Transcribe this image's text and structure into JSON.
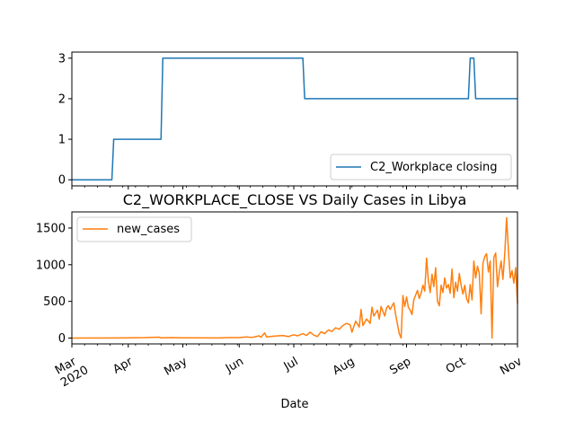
{
  "chart_data": [
    {
      "type": "line",
      "title": "",
      "xlabel": "",
      "ylabel": "",
      "ylim": [
        -0.15,
        3.15
      ],
      "yticks": [
        0,
        1,
        2,
        3
      ],
      "legend_placement": "lower-right",
      "grid": false,
      "series": [
        {
          "name": "C2_Workplace closing",
          "color": "#1f77b4",
          "points": [
            [
              "2020-03-01",
              0
            ],
            [
              "2020-03-23",
              0
            ],
            [
              "2020-03-24",
              1
            ],
            [
              "2020-04-19",
              1
            ],
            [
              "2020-04-20",
              3
            ],
            [
              "2020-07-06",
              3
            ],
            [
              "2020-07-07",
              2
            ],
            [
              "2020-10-05",
              2
            ],
            [
              "2020-10-06",
              3
            ],
            [
              "2020-10-08",
              3
            ],
            [
              "2020-10-09",
              2
            ],
            [
              "2020-11-01",
              2
            ]
          ]
        }
      ]
    },
    {
      "type": "line",
      "title": "C2_WORKPLACE_CLOSE VS Daily Cases in Libya",
      "xlabel": "Date",
      "ylabel": "",
      "ylim": [
        -80,
        1720
      ],
      "yticks": [
        0,
        500,
        1000,
        1500
      ],
      "legend_placement": "top-left",
      "grid": false,
      "series": [
        {
          "name": "new_cases",
          "color": "#ff7f0e",
          "points": [
            [
              "2020-03-01",
              0
            ],
            [
              "2020-03-24",
              1
            ],
            [
              "2020-04-01",
              3
            ],
            [
              "2020-04-10",
              5
            ],
            [
              "2020-04-18",
              12
            ],
            [
              "2020-04-19",
              2
            ],
            [
              "2020-04-25",
              6
            ],
            [
              "2020-05-01",
              3
            ],
            [
              "2020-05-10",
              2
            ],
            [
              "2020-05-20",
              1
            ],
            [
              "2020-05-26",
              5
            ],
            [
              "2020-06-01",
              6
            ],
            [
              "2020-06-05",
              15
            ],
            [
              "2020-06-08",
              8
            ],
            [
              "2020-06-12",
              30
            ],
            [
              "2020-06-13",
              10
            ],
            [
              "2020-06-15",
              70
            ],
            [
              "2020-06-16",
              15
            ],
            [
              "2020-06-20",
              25
            ],
            [
              "2020-06-25",
              35
            ],
            [
              "2020-06-28",
              20
            ],
            [
              "2020-07-01",
              45
            ],
            [
              "2020-07-03",
              30
            ],
            [
              "2020-07-06",
              60
            ],
            [
              "2020-07-08",
              35
            ],
            [
              "2020-07-10",
              80
            ],
            [
              "2020-07-12",
              40
            ],
            [
              "2020-07-14",
              20
            ],
            [
              "2020-07-16",
              85
            ],
            [
              "2020-07-18",
              60
            ],
            [
              "2020-07-20",
              110
            ],
            [
              "2020-07-22",
              90
            ],
            [
              "2020-07-24",
              140
            ],
            [
              "2020-07-26",
              120
            ],
            [
              "2020-07-28",
              170
            ],
            [
              "2020-07-30",
              200
            ],
            [
              "2020-08-01",
              180
            ],
            [
              "2020-08-02",
              80
            ],
            [
              "2020-08-04",
              230
            ],
            [
              "2020-08-06",
              150
            ],
            [
              "2020-08-07",
              390
            ],
            [
              "2020-08-08",
              170
            ],
            [
              "2020-08-10",
              260
            ],
            [
              "2020-08-12",
              200
            ],
            [
              "2020-08-13",
              420
            ],
            [
              "2020-08-14",
              300
            ],
            [
              "2020-08-16",
              380
            ],
            [
              "2020-08-17",
              260
            ],
            [
              "2020-08-18",
              430
            ],
            [
              "2020-08-20",
              300
            ],
            [
              "2020-08-21",
              410
            ],
            [
              "2020-08-22",
              440
            ],
            [
              "2020-08-23",
              390
            ],
            [
              "2020-08-25",
              480
            ],
            [
              "2020-08-26",
              320
            ],
            [
              "2020-08-27",
              190
            ],
            [
              "2020-08-28",
              60
            ],
            [
              "2020-08-29",
              0
            ],
            [
              "2020-08-30",
              580
            ],
            [
              "2020-08-31",
              430
            ],
            [
              "2020-09-01",
              560
            ],
            [
              "2020-09-02",
              420
            ],
            [
              "2020-09-03",
              380
            ],
            [
              "2020-09-04",
              320
            ],
            [
              "2020-09-05",
              520
            ],
            [
              "2020-09-07",
              650
            ],
            [
              "2020-09-08",
              540
            ],
            [
              "2020-09-09",
              610
            ],
            [
              "2020-09-10",
              720
            ],
            [
              "2020-09-11",
              640
            ],
            [
              "2020-09-12",
              1090
            ],
            [
              "2020-09-13",
              780
            ],
            [
              "2020-09-14",
              620
            ],
            [
              "2020-09-15",
              870
            ],
            [
              "2020-09-16",
              700
            ],
            [
              "2020-09-17",
              960
            ],
            [
              "2020-09-18",
              500
            ],
            [
              "2020-09-19",
              440
            ],
            [
              "2020-09-20",
              720
            ],
            [
              "2020-09-21",
              620
            ],
            [
              "2020-09-22",
              820
            ],
            [
              "2020-09-23",
              680
            ],
            [
              "2020-09-24",
              730
            ],
            [
              "2020-09-25",
              610
            ],
            [
              "2020-09-26",
              940
            ],
            [
              "2020-09-27",
              550
            ],
            [
              "2020-09-28",
              760
            ],
            [
              "2020-09-29",
              640
            ],
            [
              "2020-09-30",
              880
            ],
            [
              "2020-10-01",
              720
            ],
            [
              "2020-10-02",
              600
            ],
            [
              "2020-10-03",
              720
            ],
            [
              "2020-10-04",
              540
            ],
            [
              "2020-10-05",
              480
            ],
            [
              "2020-10-06",
              730
            ],
            [
              "2020-10-07",
              520
            ],
            [
              "2020-10-08",
              1050
            ],
            [
              "2020-10-09",
              820
            ],
            [
              "2020-10-10",
              980
            ],
            [
              "2020-10-11",
              880
            ],
            [
              "2020-10-12",
              330
            ],
            [
              "2020-10-13",
              1020
            ],
            [
              "2020-10-14",
              1110
            ],
            [
              "2020-10-15",
              1150
            ],
            [
              "2020-10-16",
              900
            ],
            [
              "2020-10-17",
              1050
            ],
            [
              "2020-10-18",
              0
            ],
            [
              "2020-10-19",
              1100
            ],
            [
              "2020-10-20",
              1160
            ],
            [
              "2020-10-21",
              700
            ],
            [
              "2020-10-22",
              900
            ],
            [
              "2020-10-23",
              1050
            ],
            [
              "2020-10-24",
              800
            ],
            [
              "2020-10-25",
              1150
            ],
            [
              "2020-10-26",
              1640
            ],
            [
              "2020-10-27",
              1200
            ],
            [
              "2020-10-28",
              820
            ],
            [
              "2020-10-29",
              920
            ],
            [
              "2020-10-30",
              750
            ],
            [
              "2020-10-31",
              960
            ],
            [
              "2020-11-01",
              470
            ]
          ]
        }
      ]
    }
  ],
  "x_axis": {
    "range": [
      "2020-03-01",
      "2020-11-01"
    ],
    "ticks": [
      {
        "date": "2020-03-01",
        "label": "Mar",
        "sub": "2020"
      },
      {
        "date": "2020-04-01",
        "label": "Apr",
        "sub": ""
      },
      {
        "date": "2020-05-01",
        "label": "May",
        "sub": ""
      },
      {
        "date": "2020-06-01",
        "label": "Jun",
        "sub": ""
      },
      {
        "date": "2020-07-01",
        "label": "Jul",
        "sub": ""
      },
      {
        "date": "2020-08-01",
        "label": "Aug",
        "sub": ""
      },
      {
        "date": "2020-09-01",
        "label": "Sep",
        "sub": ""
      },
      {
        "date": "2020-10-01",
        "label": "Oct",
        "sub": ""
      },
      {
        "date": "2020-11-01",
        "label": "Nov",
        "sub": ""
      }
    ]
  }
}
